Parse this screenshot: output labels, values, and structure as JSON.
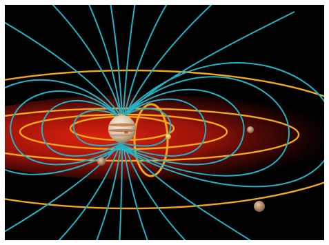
{
  "scene": {
    "subject": "planet-magnetosphere-illustration",
    "colors": {
      "background": "#000000",
      "field_lines": "#1fb4c8",
      "orbits": "#f2a818",
      "plasma_torus_inner": "#e01c10",
      "plasma_torus_outer": "#3a0805",
      "planet_light": "#f1e6d3",
      "planet_band": "#b46a3c"
    },
    "icons": [
      "planet-icon",
      "moon-icon",
      "field-line-icon",
      "orbit-icon"
    ]
  }
}
